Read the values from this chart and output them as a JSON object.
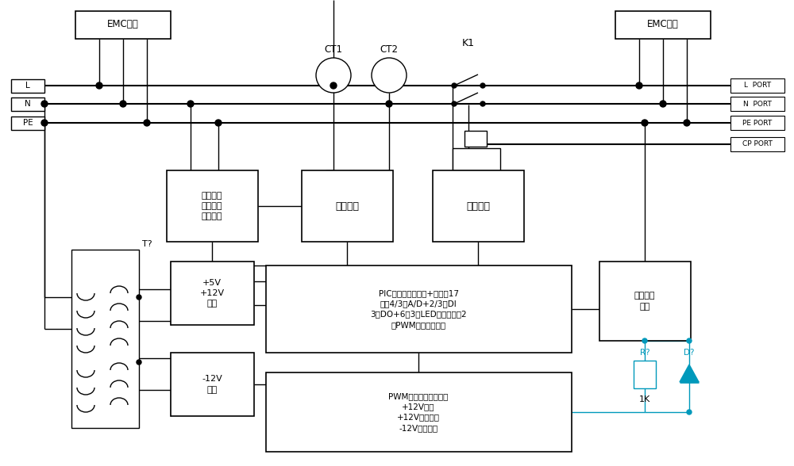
{
  "bg_color": "#ffffff",
  "line_color": "#000000",
  "figsize": [
    10.0,
    5.88
  ],
  "dpi": 100,
  "emc_left_label": "EMC防护",
  "emc_right_label": "EMC防护",
  "left_labels": [
    "L",
    "N",
    "PE"
  ],
  "right_labels": [
    "L  PORT",
    "N  PORT",
    "PE PORT",
    "CP PORT"
  ],
  "ct1_label": "CT1",
  "ct2_label": "CT2",
  "k1_label": "K1",
  "box1_label": "接地检测\n火零错相\n漏电自检",
  "box2_label": "信号调理",
  "box3_label": "功率驱动",
  "box4_label": "PIC控制单元（输入+输出共17\n路）4/3路A/D+2/3路DI\n3路DO+6路3个LED双色灯控制2\n路PWM脉冲输出控制",
  "box5_label": "+5V\n+12V\n电源",
  "box6_label": "-12V\n电源",
  "box7_label": "采样电平\n变换",
  "box8_label": "PWM防抱死区控制电路\n+12V电平\n+12V脉冲形成\n-12V脉冲形成",
  "T_label": "T?",
  "R_label": "R?",
  "D_label": "D?",
  "R_val_label": "1K",
  "cyan_color": "#0099BB"
}
